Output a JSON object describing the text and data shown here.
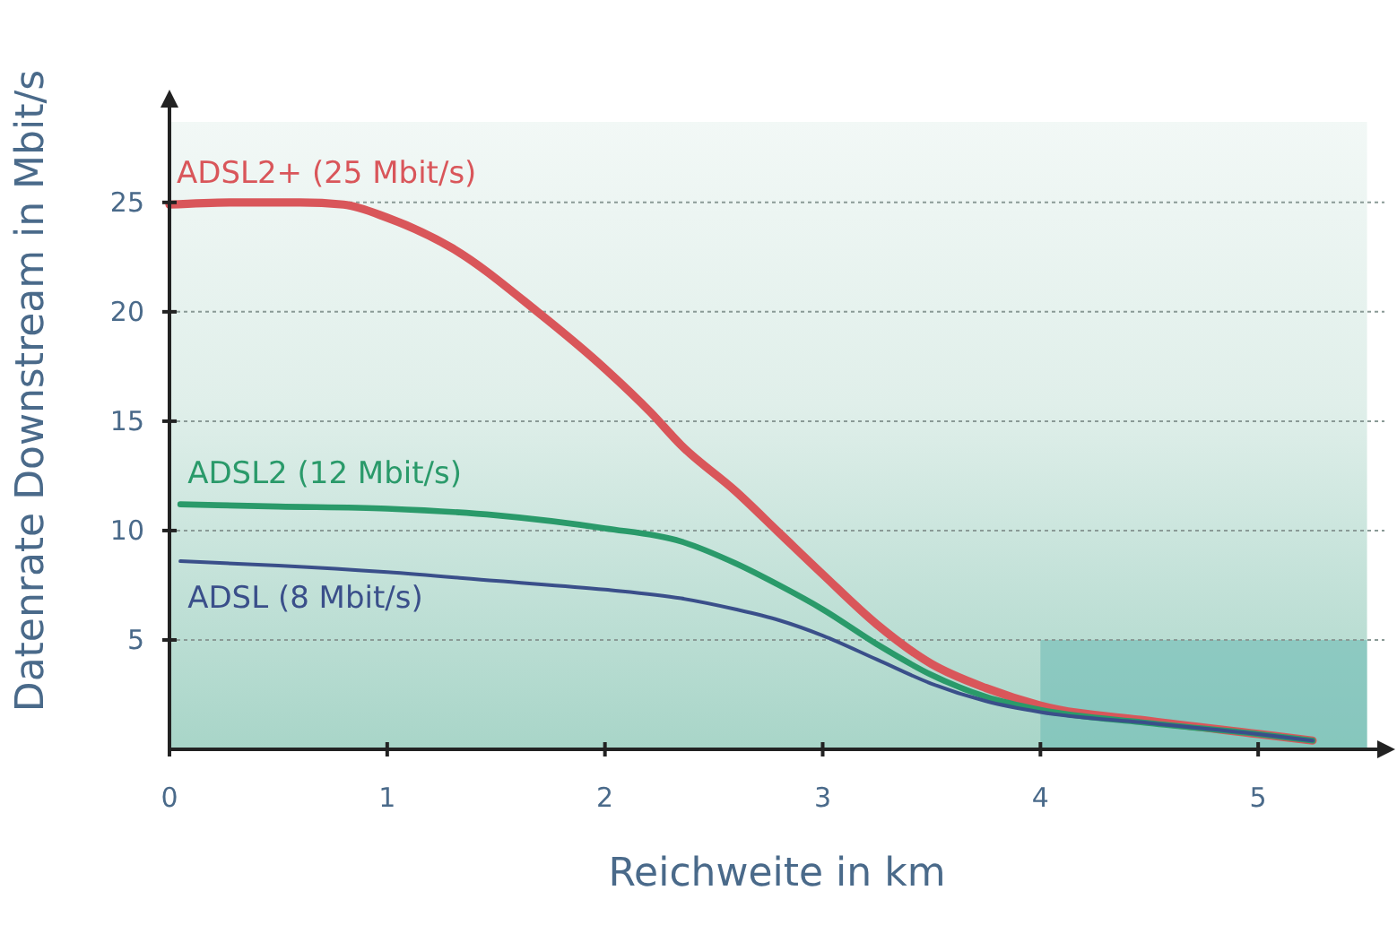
{
  "chart_data": {
    "type": "line",
    "xlabel": "Reichweite in km",
    "ylabel": "Datenrate Downstream in Mbit/s",
    "xlim": [
      0,
      5.58
    ],
    "ylim": [
      0,
      29.5
    ],
    "xticks": [
      0,
      1,
      2,
      3,
      4,
      5
    ],
    "yticks": [
      5,
      10,
      15,
      20,
      25
    ],
    "grid": "y",
    "series": [
      {
        "name": "ADSL2+ (25 Mbit/s)",
        "color": "#d9565a",
        "x": [
          0,
          0.3,
          0.6,
          0.8,
          1.0,
          1.3,
          1.69,
          2.0,
          2.21,
          2.35,
          2.6,
          2.8,
          3.0,
          3.25,
          3.5,
          3.75,
          4.0,
          4.5,
          5.0,
          5.25
        ],
        "values": [
          24.9,
          25,
          25,
          24.9,
          24.3,
          22.9,
          20,
          17.4,
          15.4,
          13.9,
          11.8,
          9.9,
          8,
          5.7,
          3.9,
          2.8,
          2,
          1.3,
          0.7,
          0.4
        ]
      },
      {
        "name": "ADSL2 (12 Mbit/s)",
        "color": "#2a9a6a",
        "x": [
          0.05,
          0.5,
          1.0,
          1.5,
          2.0,
          2.35,
          2.6,
          2.8,
          3.0,
          3.25,
          3.5,
          3.75,
          4.0,
          4.5,
          5.0,
          5.25
        ],
        "values": [
          11.2,
          11.1,
          11,
          10.7,
          10.1,
          9.5,
          8.5,
          7.5,
          6.4,
          4.8,
          3.4,
          2.4,
          1.8,
          1.2,
          0.7,
          0.4
        ]
      },
      {
        "name": "ADSL (8 Mbit/s)",
        "color": "#3a4f8a",
        "x": [
          0.05,
          0.5,
          1.0,
          1.5,
          2.0,
          2.35,
          2.6,
          2.8,
          3.0,
          3.25,
          3.5,
          3.75,
          4.0,
          4.5,
          5.0,
          5.25
        ],
        "values": [
          8.6,
          8.4,
          8.1,
          7.7,
          7.3,
          6.9,
          6.4,
          5.9,
          5.2,
          4.1,
          3,
          2.2,
          1.7,
          1.2,
          0.7,
          0.4
        ]
      }
    ]
  }
}
